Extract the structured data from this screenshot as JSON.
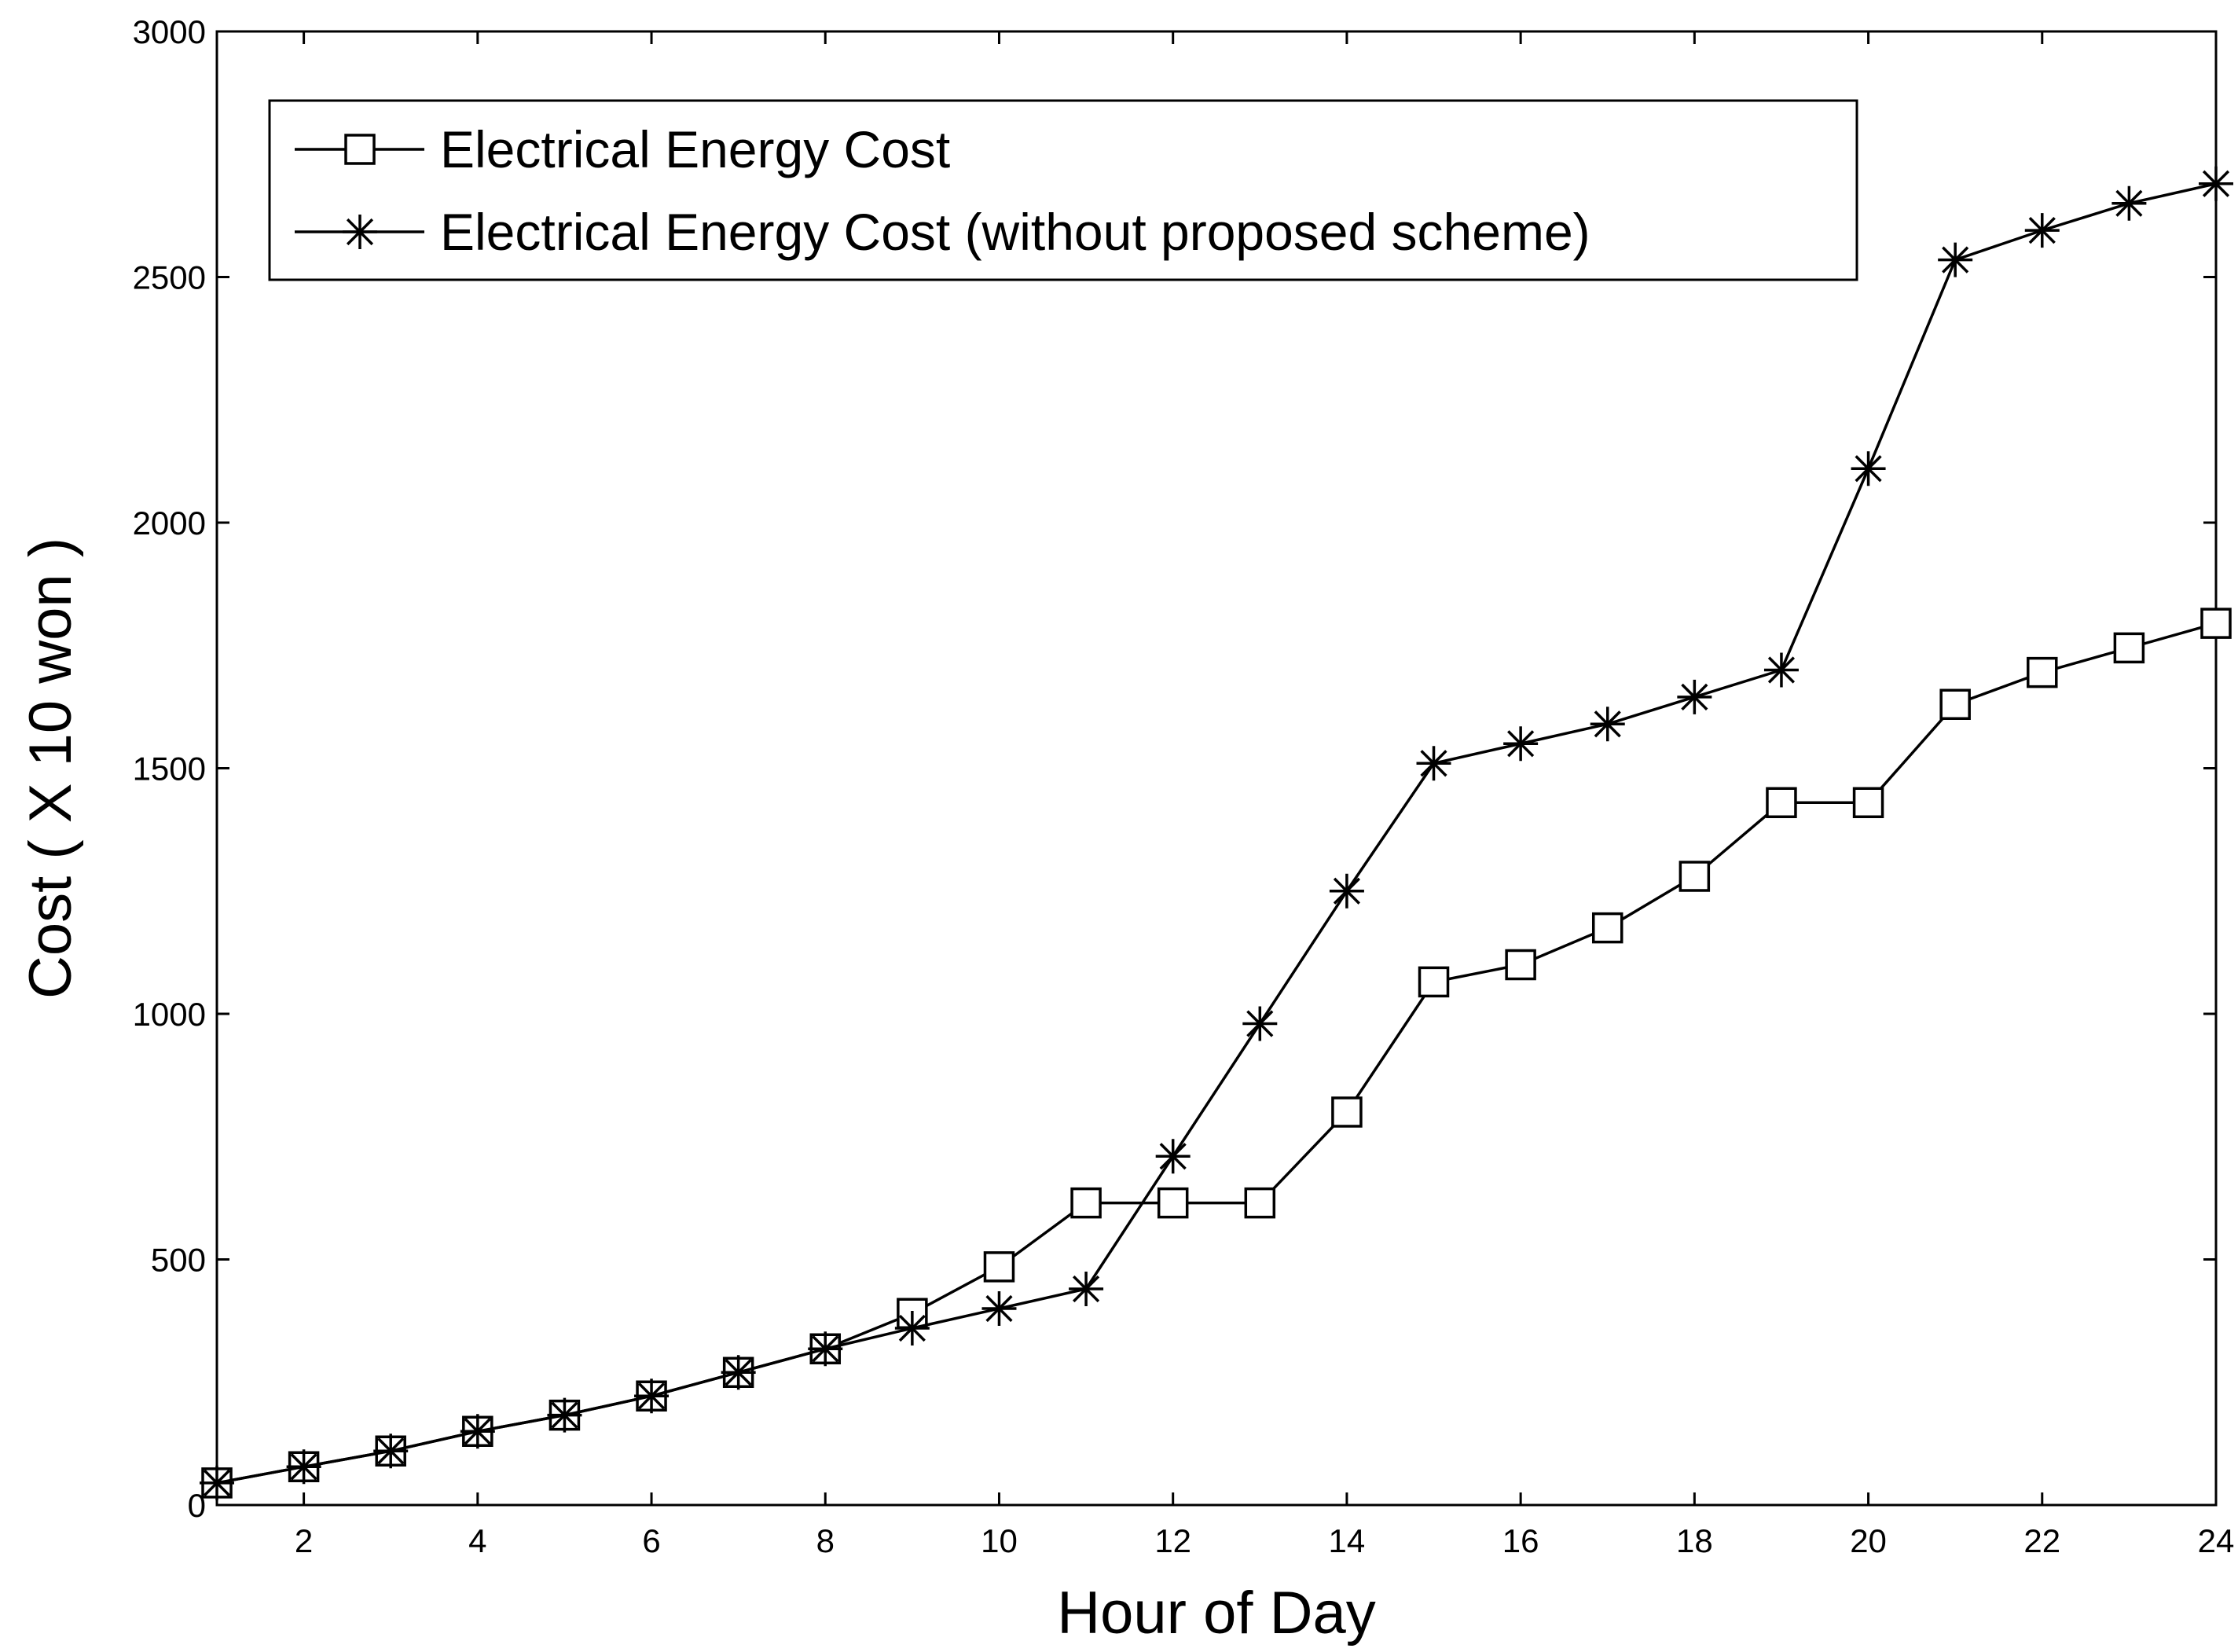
{
  "chart_data": {
    "type": "line",
    "title": "",
    "xlabel": "Hour of Day",
    "ylabel": "Cost ( X 10 won )",
    "xlim": [
      1,
      24
    ],
    "ylim": [
      0,
      3000
    ],
    "xticks": [
      2,
      4,
      6,
      8,
      10,
      12,
      14,
      16,
      18,
      20,
      22,
      24
    ],
    "yticks": [
      0,
      500,
      1000,
      1500,
      2000,
      2500,
      3000
    ],
    "xtick_labels": [
      "2",
      "4",
      "6",
      "8",
      "10",
      "12",
      "14",
      "16",
      "18",
      "20",
      "22",
      "24"
    ],
    "ytick_labels": [
      "0",
      "500",
      "1000",
      "1500",
      "2000",
      "2500",
      "3000"
    ],
    "grid": false,
    "legend_position": "top-left",
    "x": [
      1,
      2,
      3,
      4,
      5,
      6,
      7,
      8,
      9,
      10,
      11,
      12,
      13,
      14,
      15,
      16,
      17,
      18,
      19,
      20,
      21,
      22,
      23,
      24
    ],
    "series": [
      {
        "name": "Electrical Energy Cost",
        "marker": "square",
        "values": [
          45,
          78,
          110,
          150,
          183,
          222,
          270,
          318,
          390,
          485,
          615,
          615,
          615,
          800,
          1065,
          1100,
          1175,
          1280,
          1430,
          1430,
          1630,
          1695,
          1745,
          1795
        ]
      },
      {
        "name": "Electrical Energy Cost (without proposed scheme)",
        "marker": "star",
        "values": [
          45,
          78,
          110,
          150,
          183,
          222,
          270,
          318,
          360,
          400,
          440,
          710,
          980,
          1250,
          1510,
          1550,
          1590,
          1645,
          1700,
          2110,
          2535,
          2595,
          2650,
          2690
        ]
      }
    ]
  }
}
